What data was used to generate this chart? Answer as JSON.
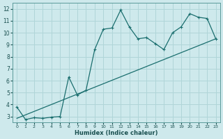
{
  "xlabel": "Humidex (Indice chaleur)",
  "ylabel": "",
  "bg_color": "#cee9ec",
  "grid_color": "#b0d5d8",
  "line_color": "#1a6e6e",
  "xlim": [
    -0.5,
    23.5
  ],
  "ylim": [
    2.5,
    12.5
  ],
  "xticks": [
    0,
    1,
    2,
    3,
    4,
    5,
    6,
    7,
    8,
    9,
    10,
    11,
    12,
    13,
    14,
    15,
    16,
    17,
    18,
    19,
    20,
    21,
    22,
    23
  ],
  "yticks": [
    3,
    4,
    5,
    6,
    7,
    8,
    9,
    10,
    11,
    12
  ],
  "wavy_x": [
    0,
    1,
    2,
    3,
    4,
    5,
    6,
    7,
    8,
    9,
    10,
    11,
    12,
    13,
    14,
    15,
    16,
    17,
    18,
    19,
    20,
    21,
    22,
    23
  ],
  "wavy_y": [
    3.8,
    2.75,
    2.9,
    2.85,
    2.95,
    3.0,
    6.3,
    4.8,
    5.2,
    8.6,
    10.3,
    10.4,
    11.9,
    10.5,
    9.5,
    9.6,
    9.1,
    8.6,
    10.0,
    10.5,
    11.6,
    11.3,
    11.2,
    9.5
  ],
  "line_x": [
    0,
    23
  ],
  "line_y": [
    2.85,
    9.5
  ]
}
